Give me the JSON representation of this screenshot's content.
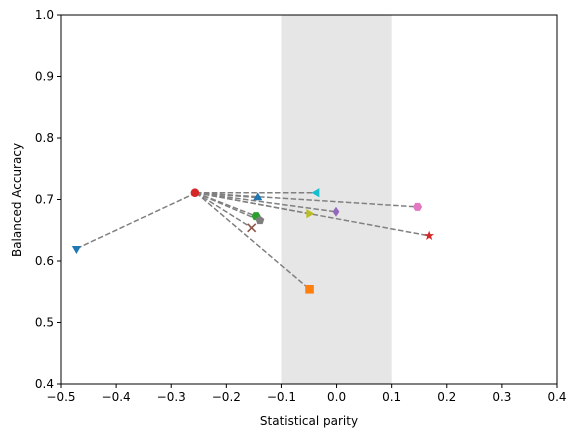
{
  "chart_data": {
    "type": "scatter",
    "title": "",
    "xlabel": "Statistical parity",
    "ylabel": "Balanced Accuracy",
    "xlim": [
      -0.5,
      0.4
    ],
    "ylim": [
      0.4,
      1.0
    ],
    "x_ticks": [
      -0.5,
      -0.4,
      -0.3,
      -0.2,
      -0.1,
      0.0,
      0.1,
      0.2,
      0.3,
      0.4
    ],
    "x_tick_labels": [
      "−0.5",
      "−0.4",
      "−0.3",
      "−0.2",
      "−0.1",
      "0.0",
      "0.1",
      "0.2",
      "0.3",
      "0.4"
    ],
    "y_ticks": [
      0.4,
      0.5,
      0.6,
      0.7,
      0.8,
      0.9,
      1.0
    ],
    "y_tick_labels": [
      "0.4",
      "0.5",
      "0.6",
      "0.7",
      "0.8",
      "0.9",
      "1.0"
    ],
    "grid": false,
    "legend": "none",
    "shaded_region": {
      "x": [
        -0.1,
        0.1
      ],
      "color": "#e6e6e6"
    },
    "connector_line_color": "#808080",
    "origin": {
      "x": -0.255,
      "y": 0.711,
      "marker": "circle",
      "color": "#d62728"
    },
    "points": [
      {
        "x": -0.472,
        "y": 0.62,
        "marker": "triangle-down",
        "color": "#1f77b4"
      },
      {
        "x": -0.049,
        "y": 0.554,
        "marker": "square",
        "color": "#ff7f0e"
      },
      {
        "x": -0.146,
        "y": 0.673,
        "marker": "hexagon",
        "color": "#2ca02c"
      },
      {
        "x": -0.257,
        "y": 0.711,
        "marker": "circle",
        "color": "#d62728"
      },
      {
        "x": -0.001,
        "y": 0.68,
        "marker": "diamond",
        "color": "#9467bd"
      },
      {
        "x": -0.154,
        "y": 0.654,
        "marker": "x",
        "color": "#8c564b"
      },
      {
        "x": 0.147,
        "y": 0.688,
        "marker": "hexagon",
        "color": "#e377c2"
      },
      {
        "x": -0.139,
        "y": 0.666,
        "marker": "pentagon",
        "color": "#7f7f7f"
      },
      {
        "x": -0.05,
        "y": 0.677,
        "marker": "triangle-right",
        "color": "#bcbd22"
      },
      {
        "x": -0.036,
        "y": 0.711,
        "marker": "triangle-left",
        "color": "#17becf"
      },
      {
        "x": -0.143,
        "y": 0.703,
        "marker": "triangle-up",
        "color": "#1f77b4"
      },
      {
        "x": 0.168,
        "y": 0.641,
        "marker": "star",
        "color": "#d62728"
      }
    ]
  }
}
